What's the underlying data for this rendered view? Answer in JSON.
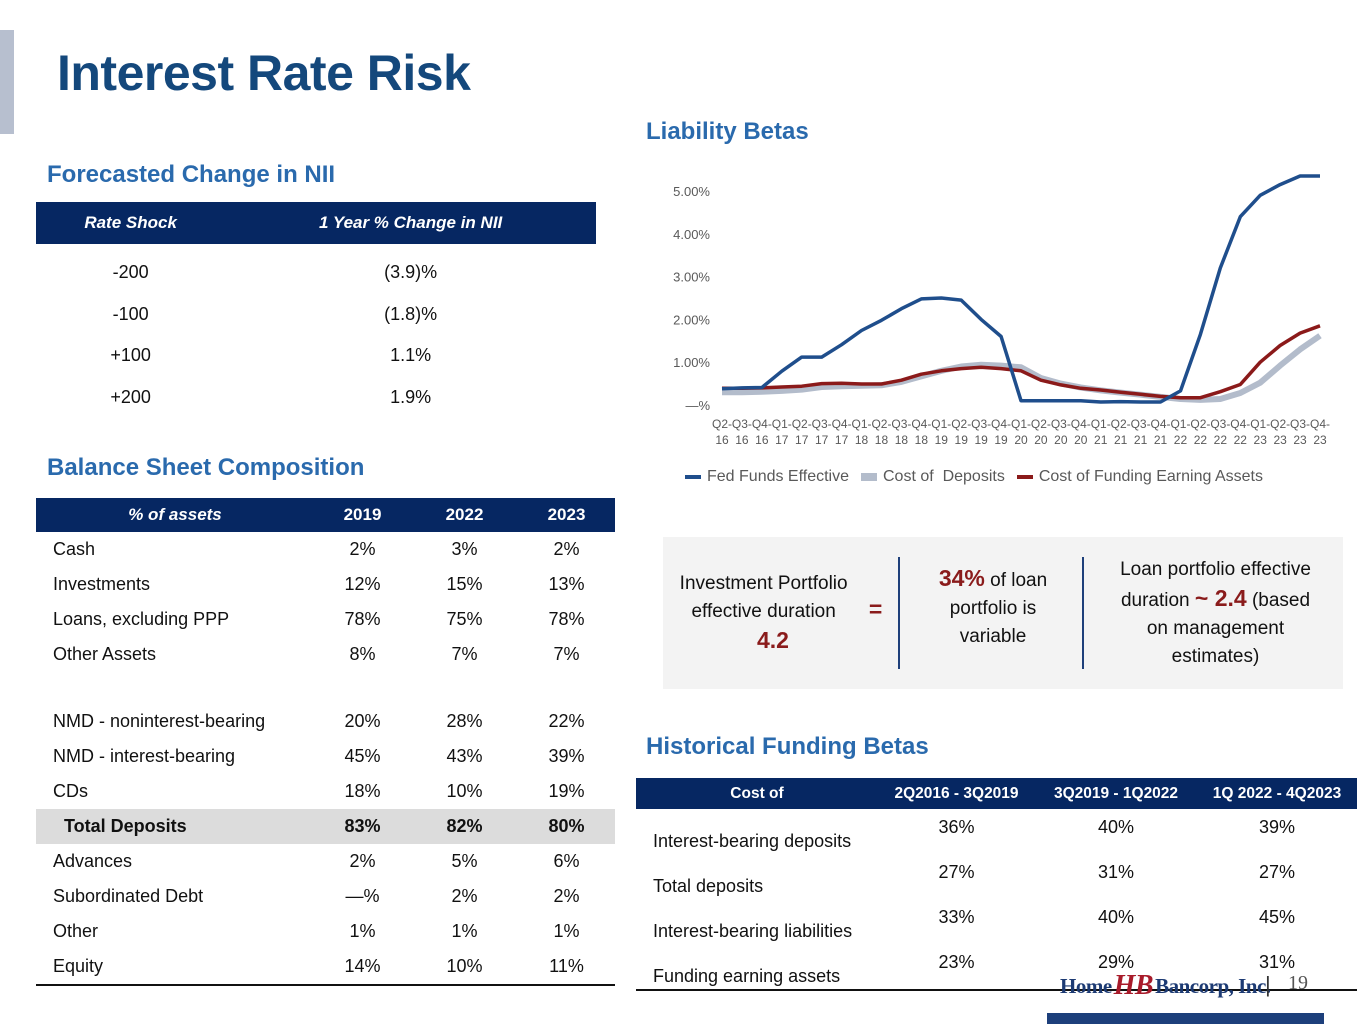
{
  "page": {
    "title": "Interest Rate Risk",
    "page_number": "19",
    "logo": {
      "left": "Home",
      "mark": "HB",
      "right": "Bancorp, Inc."
    }
  },
  "nii": {
    "title": "Forecasted Change in NII",
    "headers": [
      "Rate Shock",
      "1 Year % Change in NII"
    ],
    "rows": [
      [
        "-200",
        "(3.9)%"
      ],
      [
        "-100",
        "(1.8)%"
      ],
      [
        "+100",
        "1.1%"
      ],
      [
        "+200",
        "1.9%"
      ]
    ]
  },
  "balance_sheet": {
    "title": "Balance Sheet Composition",
    "headers": [
      "% of assets",
      "2019",
      "2022",
      "2023"
    ],
    "rows": [
      [
        "Cash",
        "2%",
        "3%",
        "2%"
      ],
      [
        "Investments",
        "12%",
        "15%",
        "13%"
      ],
      [
        "Loans, excluding PPP",
        "78%",
        "75%",
        "78%"
      ],
      [
        "Other Assets",
        "8%",
        "7%",
        "7%"
      ],
      [
        "NMD - noninterest-bearing",
        "20%",
        "28%",
        "22%"
      ],
      [
        "NMD - interest-bearing",
        "45%",
        "43%",
        "39%"
      ],
      [
        "CDs",
        "18%",
        "10%",
        "19%"
      ],
      [
        "Total Deposits",
        "83%",
        "82%",
        "80%"
      ],
      [
        "Advances",
        "2%",
        "5%",
        "6%"
      ],
      [
        "Subordinated Debt",
        "—%",
        "2%",
        "2%"
      ],
      [
        "Other",
        "1%",
        "1%",
        "1%"
      ],
      [
        "Equity",
        "14%",
        "10%",
        "11%"
      ]
    ]
  },
  "callout": {
    "col1_text": "Investment Portfolio effective duration",
    "col1_eq": "=",
    "col1_value": "4.2",
    "col2_value": "34%",
    "col2_text_a": " of loan",
    "col2_text_b": "portfolio is",
    "col2_text_c": "variable",
    "col3_text_a": "Loan portfolio effective",
    "col3_text_b": "duration ",
    "col3_value": "~ 2.4",
    "col3_text_c": " (based",
    "col3_text_d": "on management",
    "col3_text_e": "estimates)"
  },
  "historical": {
    "title": "Historical Funding Betas",
    "headers": [
      "Cost of",
      "2Q2016 - 3Q2019",
      "3Q2019 - 1Q2022",
      "1Q 2022 - 4Q2023"
    ],
    "rows": [
      [
        "Interest-bearing deposits",
        "36%",
        "40%",
        "39%"
      ],
      [
        "Total deposits",
        "27%",
        "31%",
        "27%"
      ],
      [
        "Interest-bearing liabilities",
        "33%",
        "40%",
        "45%"
      ],
      [
        "Funding earning assets",
        "23%",
        "29%",
        "31%"
      ]
    ]
  },
  "chart_data": {
    "type": "line",
    "title": "Liability Betas",
    "xlabel": "",
    "ylabel": "",
    "ylim": [
      0,
      5.0
    ],
    "yticks": [
      0,
      1,
      2,
      3,
      4,
      5
    ],
    "ytick_labels": [
      "—%",
      "1.00%",
      "2.00%",
      "3.00%",
      "4.00%",
      "5.00%"
    ],
    "grid": false,
    "legend_position": "bottom",
    "x": [
      "Q2-16",
      "Q3-16",
      "Q4-16",
      "Q1-17",
      "Q2-17",
      "Q3-17",
      "Q4-17",
      "Q1-18",
      "Q2-18",
      "Q3-18",
      "Q4-18",
      "Q1-19",
      "Q2-19",
      "Q3-19",
      "Q4-19",
      "Q1-20",
      "Q2-20",
      "Q3-20",
      "Q4-20",
      "Q1-21",
      "Q2-21",
      "Q3-21",
      "Q4-21",
      "Q1-22",
      "Q2-22",
      "Q3-22",
      "Q4-22",
      "Q1-23",
      "Q2-23",
      "Q3-23",
      "Q4-23"
    ],
    "series": [
      {
        "name": "Fed Funds Effective",
        "color": "#1f4e8c",
        "values": [
          0.38,
          0.4,
          0.41,
          0.79,
          1.12,
          1.12,
          1.41,
          1.74,
          1.98,
          2.25,
          2.48,
          2.5,
          2.45,
          2.0,
          1.6,
          0.1,
          0.1,
          0.1,
          0.1,
          0.07,
          0.08,
          0.07,
          0.07,
          0.33,
          1.65,
          3.2,
          4.4,
          4.9,
          5.15,
          5.35,
          5.35
        ]
      },
      {
        "name": "Cost of  Deposits",
        "color": "#b3bccb",
        "values": [
          0.3,
          0.3,
          0.31,
          0.33,
          0.36,
          0.42,
          0.44,
          0.45,
          0.46,
          0.54,
          0.67,
          0.8,
          0.9,
          0.94,
          0.92,
          0.88,
          0.63,
          0.5,
          0.41,
          0.34,
          0.29,
          0.24,
          0.19,
          0.14,
          0.12,
          0.14,
          0.28,
          0.52,
          0.92,
          1.3,
          1.62
        ]
      },
      {
        "name": "Cost of Funding Earning Assets",
        "color": "#8b1a1a",
        "values": [
          0.39,
          0.39,
          0.4,
          0.42,
          0.44,
          0.5,
          0.51,
          0.49,
          0.49,
          0.58,
          0.72,
          0.8,
          0.85,
          0.88,
          0.85,
          0.8,
          0.58,
          0.47,
          0.39,
          0.35,
          0.3,
          0.25,
          0.2,
          0.17,
          0.17,
          0.31,
          0.48,
          1.0,
          1.39,
          1.68,
          1.85
        ]
      }
    ]
  }
}
